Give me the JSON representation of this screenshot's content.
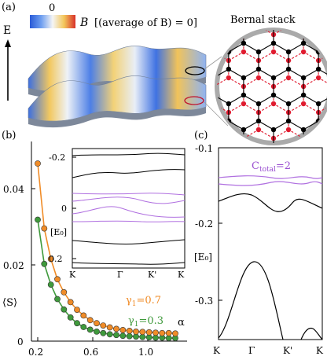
{
  "panel_a": {
    "label": "(a)",
    "energy_axis_label": "E",
    "colorbar_zero": "0",
    "colorbar_symbol": "B",
    "colorbar_note": "[(average of B) = 0]",
    "bernal_title": "Bernal stack"
  },
  "panel_b": {
    "label": "(b)",
    "ylabel": "⟨S⟩",
    "xlabel": "α",
    "yticks": [
      "0",
      "0.02",
      "0.04"
    ],
    "xticks": [
      "0.2",
      "0.6",
      "1.0"
    ],
    "inset": {
      "yticks": [
        "-0.2",
        "0",
        "0.2"
      ],
      "ylabel": "[E₀]",
      "xticks": [
        "K",
        "Γ",
        "K'",
        "K"
      ]
    }
  },
  "panel_c": {
    "label": "(c)",
    "annotation": "C",
    "annotation_sub": "total",
    "annotation_value": "=2",
    "yticks": [
      "-0.1",
      "-0.2",
      "-0.3"
    ],
    "ylabel": "[E₀]",
    "xticks": [
      "K",
      "Γ",
      "K'",
      "K"
    ]
  },
  "chart_data": [
    {
      "type": "scatter",
      "xlabel": "α",
      "ylabel": "⟨S⟩",
      "xlim": [
        0.2,
        1.3
      ],
      "ylim": [
        0,
        0.05
      ],
      "series": [
        {
          "name": "γ1=0.7",
          "label_main": "γ",
          "label_sub": "1",
          "label_value": "=0.7",
          "color": "#f08c28",
          "x": [
            0.25,
            0.3,
            0.35,
            0.4,
            0.45,
            0.5,
            0.55,
            0.6,
            0.65,
            0.7,
            0.75,
            0.8,
            0.85,
            0.9,
            0.95,
            1.0,
            1.05,
            1.1,
            1.15,
            1.2,
            1.25,
            1.3
          ],
          "y": [
            0.0465,
            0.0295,
            0.0215,
            0.0162,
            0.0128,
            0.0102,
            0.0082,
            0.0067,
            0.0055,
            0.0047,
            0.0041,
            0.0036,
            0.0032,
            0.0029,
            0.0027,
            0.0025,
            0.0024,
            0.0023,
            0.0022,
            0.0021,
            0.0021,
            0.002
          ]
        },
        {
          "name": "γ1=0.3",
          "label_main": "γ",
          "label_sub": "1",
          "label_value": "=0.3",
          "color": "#3f9a3c",
          "x": [
            0.25,
            0.3,
            0.35,
            0.4,
            0.45,
            0.5,
            0.55,
            0.6,
            0.65,
            0.7,
            0.75,
            0.8,
            0.85,
            0.9,
            0.95,
            1.0,
            1.05,
            1.1,
            1.15,
            1.2,
            1.25,
            1.3
          ],
          "y": [
            0.0318,
            0.0202,
            0.0148,
            0.011,
            0.0083,
            0.0062,
            0.0047,
            0.0037,
            0.003,
            0.0025,
            0.0021,
            0.0018,
            0.0016,
            0.0014,
            0.0013,
            0.0012,
            0.0011,
            0.001,
            0.0009,
            0.0009,
            0.0008,
            0.0008
          ]
        }
      ]
    },
    {
      "type": "line",
      "ylabel": "[E₀]",
      "ylim": [
        -0.38,
        -0.1
      ],
      "categories": [
        "K",
        "Γ",
        "K'",
        "K"
      ]
    }
  ]
}
